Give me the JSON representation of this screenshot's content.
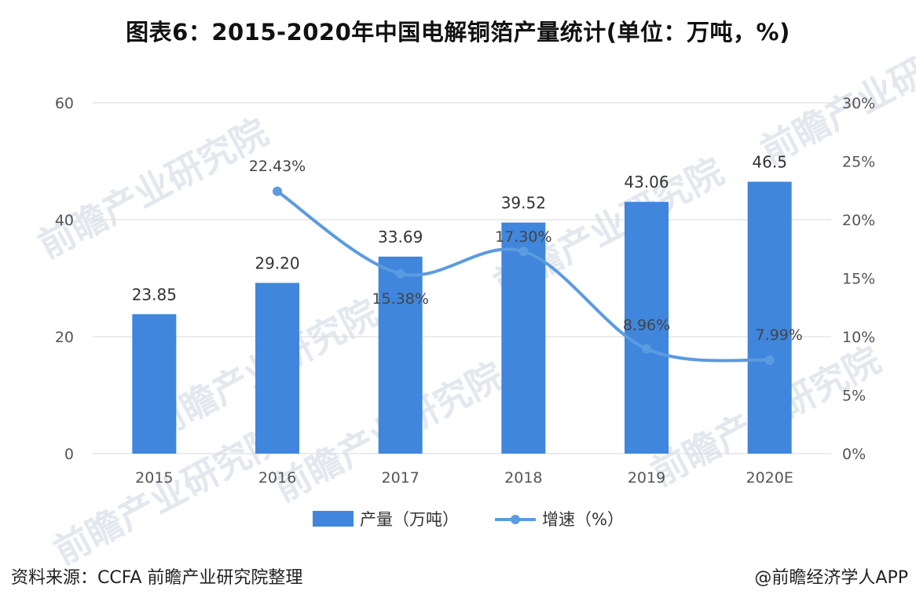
{
  "title": "图表6：2015-2020年中国电解铜箔产量统计(单位：万吨，%)",
  "footer": {
    "source": "资料来源：CCFA 前瞻产业研究院整理",
    "credit": "@前瞻经济学人APP"
  },
  "watermark": "前瞻产业研究院",
  "colors": {
    "bar": "#3f86dc",
    "line": "#5b9be0",
    "grid": "#d9d9d9"
  },
  "chart_data": {
    "type": "bar",
    "categories": [
      "2015",
      "2016",
      "2017",
      "2018",
      "2019",
      "2020E"
    ],
    "series": [
      {
        "name": "产量（万吨）",
        "type": "bar",
        "axis": "left",
        "values": [
          23.85,
          29.2,
          33.69,
          39.52,
          43.06,
          46.5
        ],
        "labels": [
          "23.85",
          "29.20",
          "33.69",
          "39.52",
          "43.06",
          "46.5"
        ]
      },
      {
        "name": "增速（%）",
        "type": "line",
        "axis": "right",
        "values": [
          null,
          22.43,
          15.38,
          17.3,
          8.96,
          7.99
        ],
        "labels": [
          "",
          "22.43%",
          "15.38%",
          "17.30%",
          "8.96%",
          "7.99%"
        ]
      }
    ],
    "y_left": {
      "min": 0,
      "max": 60,
      "ticks": [
        "0",
        "20",
        "40",
        "60"
      ]
    },
    "y_right": {
      "min": 0,
      "max": 30,
      "ticks": [
        "0%",
        "5%",
        "10%",
        "15%",
        "20%",
        "25%",
        "30%"
      ]
    },
    "grid": true,
    "legend": "bottom"
  }
}
